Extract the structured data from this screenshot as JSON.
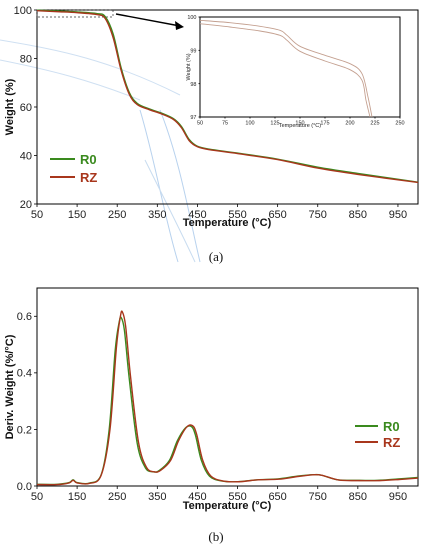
{
  "colors": {
    "R0": "#3a8a1e",
    "RZ": "#a8361c",
    "inset_line": "#c4a090",
    "faint_guides": "#b8d2ee"
  },
  "chart_data": [
    {
      "id": "a",
      "type": "line",
      "panel_label": "(a)",
      "xlabel": "Temperature (°C)",
      "ylabel": "Weight (%)",
      "xlim": [
        50,
        1000
      ],
      "ylim": [
        20,
        100
      ],
      "xticks": [
        50,
        150,
        250,
        350,
        450,
        550,
        650,
        750,
        850,
        950
      ],
      "yticks": [
        20,
        40,
        60,
        80,
        100
      ],
      "legend": {
        "position": "bottom-left",
        "entries": [
          "R0",
          "RZ"
        ]
      },
      "series": [
        {
          "name": "R0",
          "x": [
            50,
            100,
            150,
            200,
            220,
            240,
            260,
            280,
            300,
            330,
            360,
            390,
            410,
            430,
            450,
            480,
            550,
            650,
            750,
            850,
            1000
          ],
          "y": [
            99.9,
            99.6,
            99.2,
            98.5,
            97.3,
            90,
            76,
            66,
            61.5,
            59.2,
            57.5,
            55.2,
            52,
            46.5,
            43.8,
            42.6,
            41,
            38.5,
            35.2,
            32.6,
            29
          ]
        },
        {
          "name": "RZ",
          "x": [
            50,
            100,
            150,
            200,
            220,
            240,
            260,
            280,
            300,
            330,
            360,
            390,
            410,
            430,
            450,
            480,
            550,
            650,
            750,
            850,
            1000
          ],
          "y": [
            99.7,
            99.3,
            98.9,
            98.1,
            96.5,
            88.5,
            75,
            65.3,
            61,
            58.9,
            57.2,
            54.9,
            51.5,
            46,
            43.6,
            42.4,
            40.8,
            38.3,
            34.8,
            32.2,
            28.9
          ]
        }
      ],
      "inset": {
        "xlim": [
          50,
          250
        ],
        "ylim": [
          97,
          100
        ],
        "xticks": [
          50,
          75,
          100,
          125,
          150,
          175,
          200,
          225,
          250
        ],
        "yticks": [
          97,
          98,
          99,
          100
        ],
        "xlabel": "Temperature (°C)",
        "ylabel": "Weight (%)",
        "series": [
          {
            "name": "R0",
            "x": [
              50,
              80,
              110,
              130,
              137,
              150,
              175,
              200,
              212,
              218,
              222
            ],
            "y": [
              99.9,
              99.83,
              99.72,
              99.6,
              99.45,
              99.12,
              98.85,
              98.6,
              98.3,
              97.6,
              97.0
            ]
          },
          {
            "name": "RZ",
            "x": [
              50,
              80,
              110,
              130,
              137,
              150,
              175,
              200,
              212,
              216,
              220
            ],
            "y": [
              99.8,
              99.7,
              99.58,
              99.45,
              99.3,
              98.97,
              98.68,
              98.42,
              98.1,
              97.5,
              97.0
            ]
          }
        ]
      }
    },
    {
      "id": "b",
      "type": "line",
      "panel_label": "(b)",
      "xlabel": "Temperature (°C)",
      "ylabel": "Deriv. Weight (%/°C)",
      "xlim": [
        50,
        1000
      ],
      "ylim": [
        0,
        0.7
      ],
      "xticks": [
        50,
        150,
        250,
        350,
        450,
        550,
        650,
        750,
        850,
        950
      ],
      "yticks": [
        0.0,
        0.2,
        0.4,
        0.6
      ],
      "legend": {
        "position": "bottom-right",
        "entries": [
          "R0",
          "RZ"
        ]
      },
      "series": [
        {
          "name": "R0",
          "x": [
            50,
            100,
            130,
            140,
            150,
            180,
            210,
            230,
            245,
            255,
            260,
            268,
            280,
            300,
            320,
            340,
            355,
            380,
            400,
            420,
            435,
            445,
            460,
            480,
            510,
            550,
            600,
            650,
            700,
            740,
            760,
            800,
            850,
            900,
            950,
            1000
          ],
          "y": [
            0.006,
            0.006,
            0.012,
            0.022,
            0.012,
            0.01,
            0.04,
            0.2,
            0.48,
            0.58,
            0.595,
            0.55,
            0.38,
            0.15,
            0.065,
            0.05,
            0.055,
            0.09,
            0.16,
            0.205,
            0.21,
            0.18,
            0.09,
            0.035,
            0.018,
            0.015,
            0.022,
            0.025,
            0.035,
            0.04,
            0.038,
            0.022,
            0.02,
            0.02,
            0.025,
            0.03
          ]
        },
        {
          "name": "RZ",
          "x": [
            50,
            100,
            130,
            140,
            150,
            180,
            210,
            232,
            248,
            258,
            263,
            271,
            283,
            303,
            323,
            343,
            358,
            383,
            403,
            423,
            438,
            448,
            463,
            483,
            513,
            553,
            603,
            653,
            703,
            743,
            763,
            803,
            853,
            903,
            953,
            1000
          ],
          "y": [
            0.005,
            0.005,
            0.011,
            0.02,
            0.011,
            0.009,
            0.038,
            0.2,
            0.49,
            0.6,
            0.615,
            0.565,
            0.39,
            0.155,
            0.066,
            0.05,
            0.055,
            0.09,
            0.16,
            0.208,
            0.213,
            0.183,
            0.092,
            0.036,
            0.018,
            0.015,
            0.022,
            0.024,
            0.034,
            0.04,
            0.037,
            0.021,
            0.019,
            0.019,
            0.023,
            0.028
          ]
        }
      ]
    }
  ]
}
